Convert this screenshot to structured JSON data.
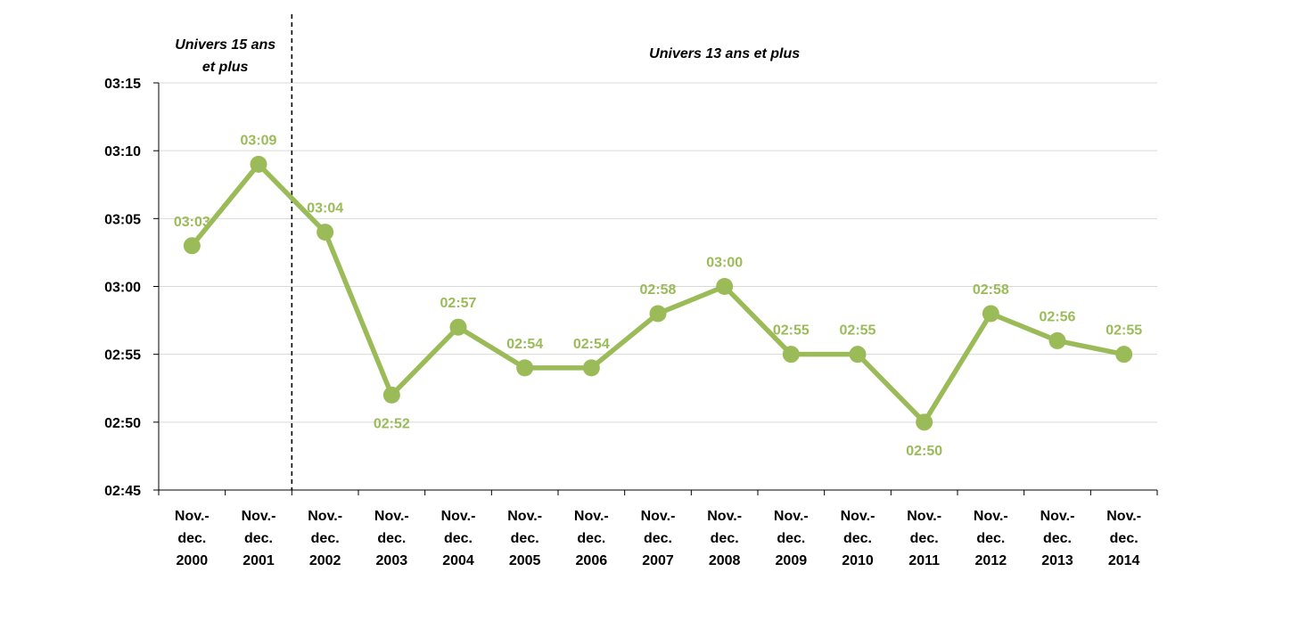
{
  "chart_data": {
    "type": "line",
    "title": "",
    "xlabel": "",
    "ylabel": "",
    "categories": [
      [
        "Nov.-",
        "dec.",
        "2000"
      ],
      [
        "Nov.-",
        "dec.",
        "2001"
      ],
      [
        "Nov.-",
        "dec.",
        "2002"
      ],
      [
        "Nov.-",
        "dec.",
        "2003"
      ],
      [
        "Nov.-",
        "dec.",
        "2004"
      ],
      [
        "Nov.-",
        "dec.",
        "2005"
      ],
      [
        "Nov.-",
        "dec.",
        "2006"
      ],
      [
        "Nov.-",
        "dec.",
        "2007"
      ],
      [
        "Nov.-",
        "dec.",
        "2008"
      ],
      [
        "Nov.-",
        "dec.",
        "2009"
      ],
      [
        "Nov.-",
        "dec.",
        "2010"
      ],
      [
        "Nov.-",
        "dec.",
        "2011"
      ],
      [
        "Nov.-",
        "dec.",
        "2012"
      ],
      [
        "Nov.-",
        "dec.",
        "2013"
      ],
      [
        "Nov.-",
        "dec.",
        "2014"
      ]
    ],
    "series": [
      {
        "values": [
          "03:03",
          "03:09",
          "03:04",
          "02:52",
          "02:57",
          "02:54",
          "02:54",
          "02:58",
          "03:00",
          "02:55",
          "02:55",
          "02:50",
          "02:58",
          "02:56",
          "02:55"
        ],
        "labels": [
          "03:03",
          "03:09",
          "03:04",
          "02:52",
          "02:57",
          "02:54",
          "02:54",
          "02:58",
          "03:00",
          "02:55",
          "02:55",
          "02:50",
          "02:58",
          "02:56",
          "02:55"
        ],
        "label_position": [
          "above",
          "above",
          "above",
          "below",
          "above",
          "above",
          "above",
          "above",
          "above",
          "above",
          "above",
          "below",
          "above",
          "above",
          "above"
        ]
      }
    ],
    "y_ticks": [
      "02:45",
      "02:50",
      "02:55",
      "03:00",
      "03:05",
      "03:10",
      "03:15"
    ],
    "ylim": [
      "02:45",
      "03:15"
    ],
    "grid": true,
    "legend": "none",
    "divider_between_categories": [
      1,
      2
    ],
    "annotations": [
      {
        "lines": [
          "Univers 15 ans",
          "et plus"
        ],
        "span_categories": [
          0,
          1
        ]
      },
      {
        "lines": [
          "Univers 13 ans et plus"
        ],
        "span_categories": [
          2,
          14
        ]
      }
    ],
    "colors": {
      "series": "#9bbb59",
      "grid": "#d9d9d9",
      "axis": "#000000",
      "divider": "#000000"
    }
  }
}
